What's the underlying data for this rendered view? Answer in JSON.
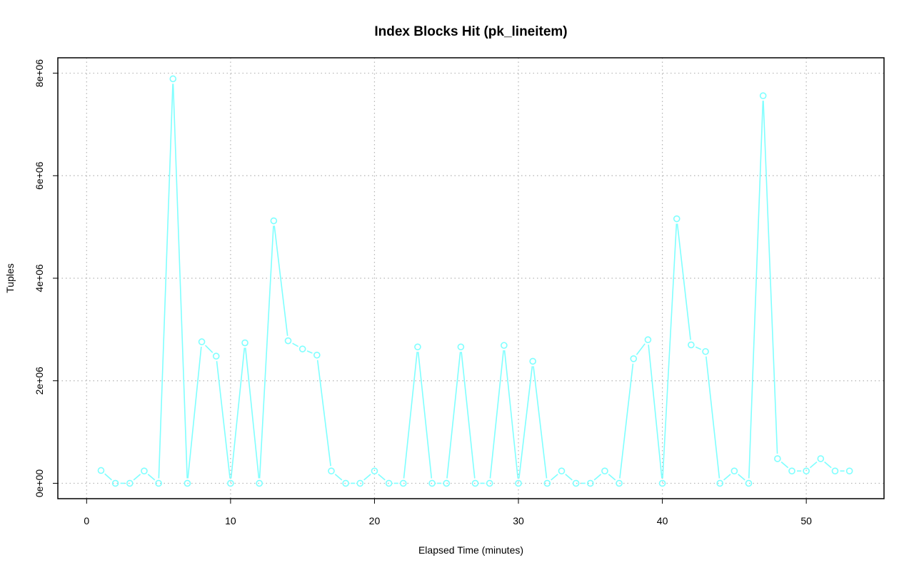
{
  "chart_data": {
    "type": "line",
    "title": "Index Blocks Hit (pk_lineitem)",
    "xlabel": "Elapsed Time (minutes)",
    "ylabel": "Tuples",
    "xlim": [
      -2,
      55.4
    ],
    "ylim": [
      -300000,
      8300000
    ],
    "xticks": [
      0,
      10,
      20,
      30,
      40,
      50
    ],
    "yticks": [
      0,
      2000000,
      4000000,
      6000000,
      8000000
    ],
    "xtick_labels": [
      "0",
      "10",
      "20",
      "30",
      "40",
      "50"
    ],
    "ytick_labels": [
      "0e+00",
      "2e+06",
      "4e+06",
      "6e+06",
      "8e+06"
    ],
    "grid": true,
    "legend": "none",
    "colors": {
      "series": "#7fffff",
      "grid": "#b3b3b3",
      "frame": "#000000"
    },
    "series": [
      {
        "x": [
          1,
          2,
          3,
          4,
          5,
          6,
          7,
          8,
          9,
          10,
          11,
          12,
          13,
          14,
          15,
          16,
          17,
          18,
          19,
          20,
          21,
          22,
          23,
          24,
          25,
          26,
          27,
          28,
          29,
          30,
          31,
          32,
          33,
          34,
          35,
          36,
          37,
          38,
          39,
          40,
          41,
          42,
          43,
          44,
          45,
          46,
          47,
          48,
          49,
          50,
          51,
          52,
          53
        ],
        "values": [
          250000,
          0,
          0,
          240000,
          0,
          7890000,
          0,
          2760000,
          2480000,
          0,
          2740000,
          0,
          5120000,
          2780000,
          2620000,
          2500000,
          240000,
          0,
          0,
          240000,
          0,
          0,
          2660000,
          0,
          0,
          2660000,
          0,
          0,
          2690000,
          0,
          2380000,
          0,
          240000,
          0,
          0,
          240000,
          0,
          2430000,
          2800000,
          0,
          5160000,
          2700000,
          2570000,
          0,
          240000,
          0,
          7560000,
          480000,
          240000,
          240000,
          480000,
          240000,
          240000
        ]
      }
    ]
  }
}
